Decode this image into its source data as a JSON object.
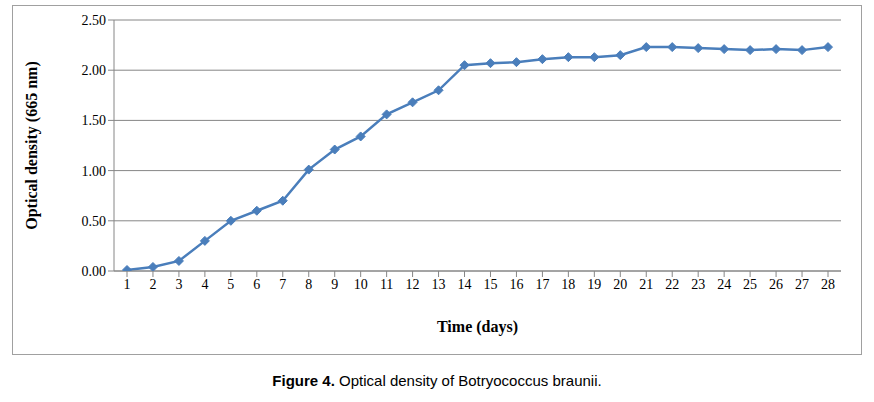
{
  "chart_data": {
    "type": "line",
    "title": "Figure 4. Optical density of Botryococcus braunii.",
    "x_label": "Time (days)",
    "y_label": "Optical density (665 nm)",
    "categories": [
      "1",
      "2",
      "3",
      "4",
      "5",
      "6",
      "7",
      "8",
      "9",
      "10",
      "11",
      "12",
      "13",
      "14",
      "15",
      "16",
      "17",
      "18",
      "19",
      "20",
      "21",
      "22",
      "23",
      "24",
      "25",
      "26",
      "27",
      "28"
    ],
    "values": [
      0.01,
      0.04,
      0.1,
      0.3,
      0.5,
      0.6,
      0.7,
      1.01,
      1.21,
      1.34,
      1.56,
      1.68,
      1.8,
      2.05,
      2.07,
      2.08,
      2.11,
      2.13,
      2.13,
      2.15,
      2.23,
      2.23,
      2.22,
      2.21,
      2.2,
      2.21,
      2.2,
      2.23
    ],
    "color": "#4a7ebb",
    "marker": "diamond",
    "ylim": [
      0,
      2.5
    ],
    "yticks": [
      {
        "value": 0,
        "label": "0.00"
      },
      {
        "value": 0.5,
        "label": "0.50"
      },
      {
        "value": 1,
        "label": "1.00"
      },
      {
        "value": 1.5,
        "label": "1.50"
      },
      {
        "value": 2,
        "label": "2.00"
      },
      {
        "value": 2.5,
        "label": "2.50"
      }
    ],
    "grid": true
  }
}
